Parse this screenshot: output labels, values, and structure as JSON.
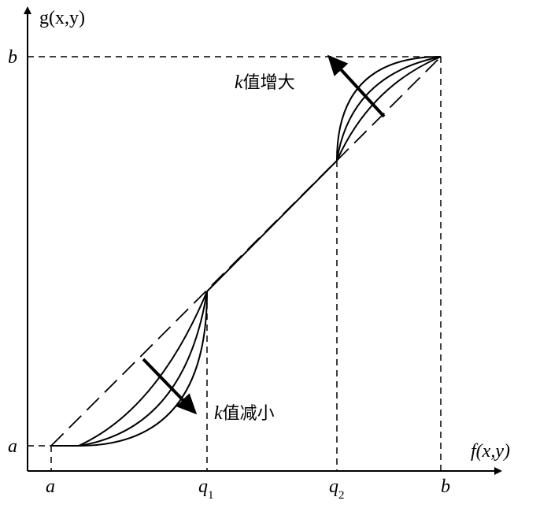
{
  "axes": {
    "y_label": "g(x,y)",
    "x_label": "f(x,y)"
  },
  "y_labels": {
    "a": "a",
    "b": "b"
  },
  "x_labels": {
    "a": "a",
    "q1": {
      "base": "q",
      "sub": "1"
    },
    "q2": {
      "base": "q",
      "sub": "2"
    },
    "b": "b"
  },
  "annotations": [
    {
      "var": "k",
      "text": "值增大"
    },
    {
      "var": "k",
      "text": "值减小"
    }
  ]
}
